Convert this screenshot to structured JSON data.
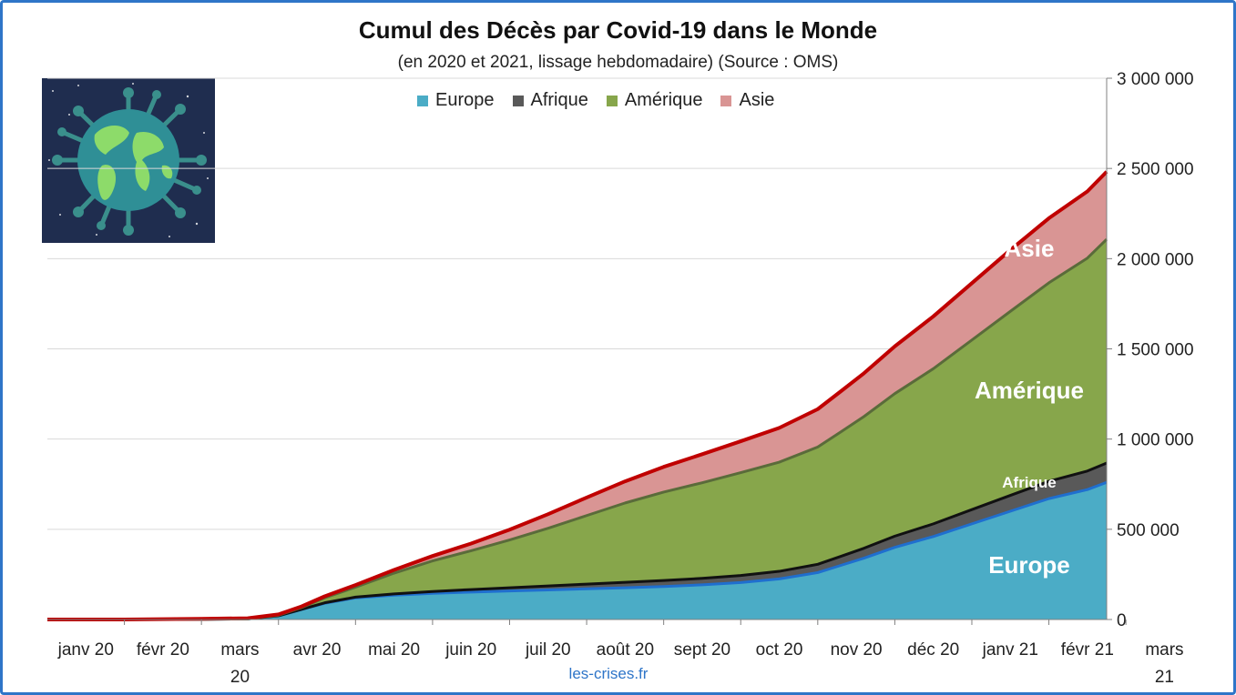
{
  "title": "Cumul des Décès par Covid-19 dans le Monde",
  "subtitle": "(en 2020 et 2021, lissage hebdomadaire) (Source : OMS)",
  "source": "les-crises.fr",
  "colors": {
    "europe": "#4bacc6",
    "afrique": "#595959",
    "amerique": "#87a64b",
    "asie": "#d99594",
    "total_line": "#c00000",
    "frame": "#2e75c8"
  },
  "chart_data": {
    "type": "area",
    "stacked": true,
    "x_ticks": [
      "janv 20",
      "févr 20",
      "mars 20",
      "avr 20",
      "mai 20",
      "juin 20",
      "juil 20",
      "août 20",
      "sept 20",
      "oct 20",
      "nov 20",
      "déc 20",
      "janv 21",
      "févr 21",
      "mars 21"
    ],
    "x_tick_lines": [
      [
        "janv 20"
      ],
      [
        "févr 20"
      ],
      [
        "mars",
        "20"
      ],
      [
        "avr 20"
      ],
      [
        "mai 20"
      ],
      [
        "juin 20"
      ],
      [
        "juil 20"
      ],
      [
        "août 20"
      ],
      [
        "sept 20"
      ],
      [
        "oct 20"
      ],
      [
        "nov 20"
      ],
      [
        "déc 20"
      ],
      [
        "janv 21"
      ],
      [
        "févr 21"
      ],
      [
        "mars",
        "21"
      ]
    ],
    "x": [
      0,
      1,
      2,
      2.6,
      3,
      3.3,
      3.6,
      4,
      4.5,
      5,
      5.5,
      6,
      6.5,
      7,
      7.5,
      8,
      8.5,
      9,
      9.5,
      10,
      10.3,
      10.6,
      11,
      11.5,
      12,
      12.5,
      13,
      13.5,
      13.75
    ],
    "ylim": [
      0,
      3000000
    ],
    "y_ticks": [
      0,
      500000,
      1000000,
      1500000,
      2000000,
      2500000,
      3000000
    ],
    "y_tick_labels": [
      "0",
      "500 000",
      "1 000 000",
      "1 500 000",
      "2 000 000",
      "2 500 000",
      "3 000 000"
    ],
    "series": [
      {
        "name": "Europe",
        "values": [
          0,
          0,
          1000,
          3000,
          20000,
          55000,
          90000,
          120000,
          135000,
          145000,
          152000,
          158000,
          164000,
          170000,
          176000,
          183000,
          192000,
          205000,
          225000,
          260000,
          300000,
          340000,
          400000,
          460000,
          530000,
          600000,
          670000,
          720000,
          760000
        ]
      },
      {
        "name": "Afrique",
        "values": [
          0,
          0,
          0,
          0,
          500,
          1500,
          2500,
          4000,
          7000,
          10000,
          14000,
          18000,
          22000,
          26000,
          30000,
          33000,
          36000,
          39000,
          42000,
          46000,
          50000,
          55000,
          62000,
          70000,
          79000,
          88000,
          96000,
          103000,
          107000
        ]
      },
      {
        "name": "Amérique",
        "values": [
          0,
          0,
          0,
          0,
          3000,
          10000,
          28000,
          55000,
          115000,
          170000,
          215000,
          265000,
          320000,
          380000,
          440000,
          490000,
          530000,
          570000,
          605000,
          650000,
          690000,
          730000,
          790000,
          860000,
          940000,
          1020000,
          1100000,
          1180000,
          1240000
        ]
      },
      {
        "name": "Asie",
        "values": [
          0,
          0,
          3000,
          4000,
          5000,
          6000,
          8000,
          12000,
          18000,
          27000,
          40000,
          57000,
          78000,
          100000,
          120000,
          140000,
          158000,
          174000,
          190000,
          210000,
          225000,
          240000,
          262000,
          290000,
          315000,
          340000,
          358000,
          370000,
          375000
        ]
      }
    ],
    "area_labels": [
      "Europe",
      "Afrique",
      "Amérique",
      "Asie"
    ],
    "legend": [
      "Europe",
      "Afrique",
      "Amérique",
      "Asie"
    ],
    "legend_position": "top"
  }
}
